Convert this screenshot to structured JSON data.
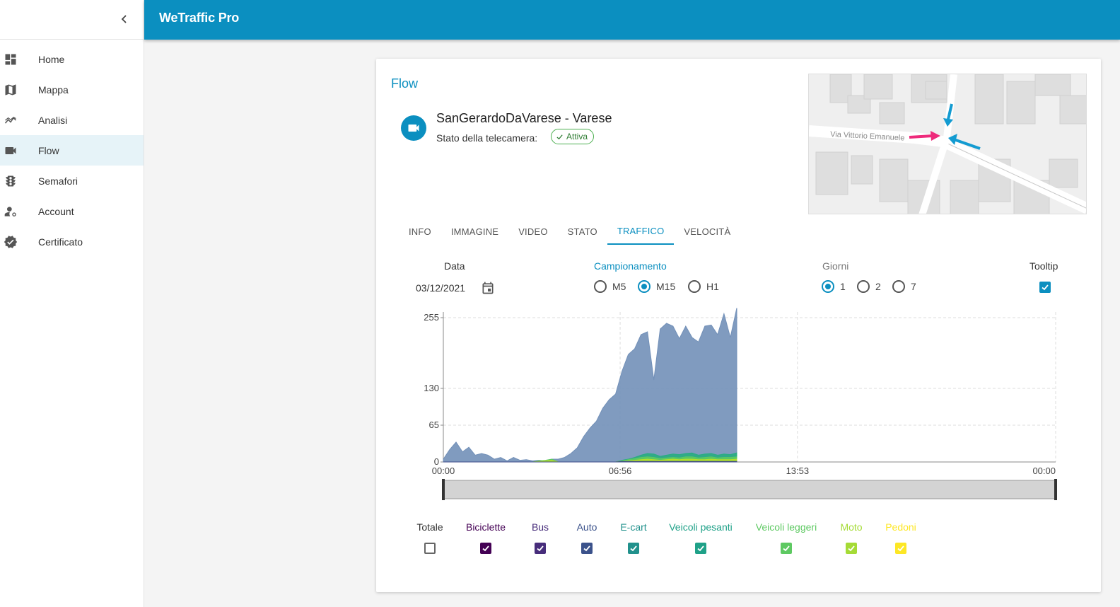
{
  "app": {
    "title": "WeTraffic Pro"
  },
  "sidebar": {
    "items": [
      {
        "label": "Home",
        "icon": "dashboard-icon"
      },
      {
        "label": "Mappa",
        "icon": "map-icon"
      },
      {
        "label": "Analisi",
        "icon": "analytics-icon"
      },
      {
        "label": "Flow",
        "icon": "videocam-icon",
        "active": true
      },
      {
        "label": "Semafori",
        "icon": "traffic-light-icon"
      },
      {
        "label": "Account",
        "icon": "manage-account-icon"
      },
      {
        "label": "Certificato",
        "icon": "verified-icon"
      }
    ]
  },
  "card": {
    "title": "Flow",
    "camera_name": "SanGerardoDaVarese - Varese",
    "state_label": "Stato della telecamera:",
    "state_value": "Attiva",
    "map_street": "Via Vittorio Emanuele"
  },
  "tabs": [
    "INFO",
    "IMMAGINE",
    "VIDEO",
    "STATO",
    "TRAFFICO",
    "VELOCITÀ"
  ],
  "active_tab": "TRAFFICO",
  "controls": {
    "data_label": "Data",
    "date_value": "03/12/2021",
    "sampling_label": "Campionamento",
    "sampling_options": [
      "M5",
      "M15",
      "H1"
    ],
    "sampling_selected": "M15",
    "days_label": "Giorni",
    "days_options": [
      "1",
      "2",
      "7"
    ],
    "days_selected": "1",
    "tooltip_label": "Tooltip",
    "tooltip_checked": true
  },
  "chart_data": {
    "type": "area",
    "x_ticks": [
      "00:00",
      "06:56",
      "13:53",
      "00:00"
    ],
    "y_ticks": [
      0,
      65,
      130,
      255
    ],
    "ylim": [
      0,
      265
    ],
    "grid": true,
    "x_hours": [
      0,
      0.25,
      0.5,
      0.75,
      1,
      1.25,
      1.5,
      1.75,
      2,
      2.25,
      2.5,
      2.75,
      3,
      3.25,
      3.5,
      3.75,
      4,
      4.25,
      4.5,
      4.75,
      5,
      5.25,
      5.5,
      5.75,
      6,
      6.25,
      6.5,
      6.75,
      7,
      7.25,
      7.5,
      7.75,
      8,
      8.25,
      8.5,
      8.75,
      9,
      9.25,
      9.5,
      9.75,
      10,
      10.25,
      10.5,
      10.75,
      11,
      11.25,
      11.5
    ],
    "series": [
      {
        "name": "Auto",
        "color": "#7290b8",
        "values": [
          5,
          22,
          35,
          18,
          26,
          12,
          15,
          12,
          5,
          8,
          2,
          8,
          3,
          4,
          2,
          3,
          2,
          5,
          5,
          8,
          15,
          25,
          45,
          60,
          72,
          95,
          110,
          120,
          160,
          190,
          200,
          225,
          230,
          145,
          235,
          245,
          240,
          218,
          240,
          220,
          212,
          240,
          242,
          225,
          262,
          220,
          272
        ]
      },
      {
        "name": "Veicoli pesanti",
        "color": "#27ad81",
        "values": [
          0,
          0,
          0,
          0,
          0,
          0,
          0,
          0,
          0,
          0,
          0,
          0,
          0,
          0,
          0,
          0,
          0,
          0,
          0,
          0,
          0,
          0,
          0,
          0,
          0,
          0,
          0,
          0,
          3,
          5,
          8,
          12,
          15,
          14,
          10,
          12,
          14,
          13,
          15,
          16,
          12,
          14,
          15,
          12,
          14,
          13,
          16
        ]
      },
      {
        "name": "Veicoli leggeri",
        "color": "#5ec962",
        "values": [
          0,
          0,
          0,
          0,
          0,
          0,
          0,
          0,
          0,
          0,
          0,
          0,
          0,
          0,
          0,
          2,
          3,
          5,
          0,
          0,
          0,
          0,
          0,
          0,
          0,
          0,
          0,
          0,
          2,
          4,
          6,
          8,
          9,
          8,
          6,
          7,
          8,
          7,
          9,
          9,
          7,
          8,
          9,
          7,
          8,
          8,
          9
        ]
      },
      {
        "name": "Moto",
        "color": "#b5de2b",
        "values": [
          0,
          0,
          0,
          0,
          0,
          0,
          0,
          0,
          0,
          0,
          0,
          0,
          0,
          0,
          0,
          1,
          2,
          3,
          0,
          0,
          0,
          0,
          0,
          0,
          0,
          0,
          0,
          0,
          1,
          2,
          3,
          4,
          5,
          4,
          3,
          4,
          5,
          4,
          5,
          5,
          4,
          4,
          5,
          4,
          4,
          4,
          5
        ]
      },
      {
        "name": "Bus",
        "color": "#3e4a89",
        "values": [
          0,
          0,
          0,
          0,
          0,
          0,
          0,
          0,
          0,
          0,
          0,
          0,
          0,
          0,
          0,
          0,
          0,
          0,
          0,
          0,
          0,
          0,
          0,
          0,
          0,
          0,
          0,
          0,
          1,
          1,
          1,
          1,
          1,
          1,
          1,
          1,
          1,
          1,
          1,
          1,
          1,
          1,
          1,
          1,
          1,
          1,
          1
        ]
      }
    ]
  },
  "legend": [
    {
      "label": "Totale",
      "color": "#333333",
      "checked": false
    },
    {
      "label": "Biciclette",
      "color": "#440154",
      "checked": true
    },
    {
      "label": "Bus",
      "color": "#472d7b",
      "checked": true
    },
    {
      "label": "Auto",
      "color": "#3b528b",
      "checked": true
    },
    {
      "label": "E-cart",
      "color": "#21918c",
      "checked": true
    },
    {
      "label": "Veicoli pesanti",
      "color": "#1fa188",
      "checked": true
    },
    {
      "label": "Veicoli leggeri",
      "color": "#5ec962",
      "checked": true
    },
    {
      "label": "Moto",
      "color": "#a5db36",
      "checked": true
    },
    {
      "label": "Pedoni",
      "color": "#fde725",
      "checked": true
    }
  ]
}
